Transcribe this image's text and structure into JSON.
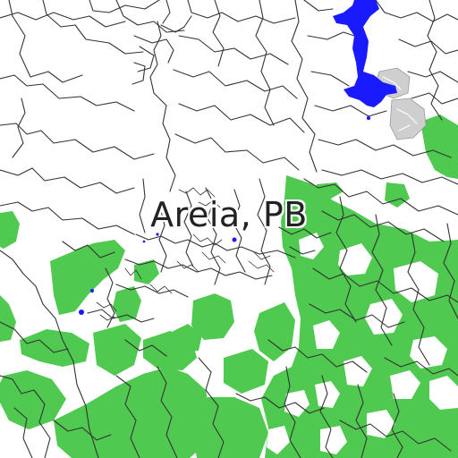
{
  "map": {
    "place_label": "Areia, PB",
    "layers": [
      "vegetation",
      "water",
      "urban-area",
      "roads"
    ],
    "colors": {
      "background": "#ffffff",
      "vegetation": "#4fc94f",
      "water": "#1a1aff",
      "urban": "#cfcfcf",
      "road": "#333333"
    }
  }
}
